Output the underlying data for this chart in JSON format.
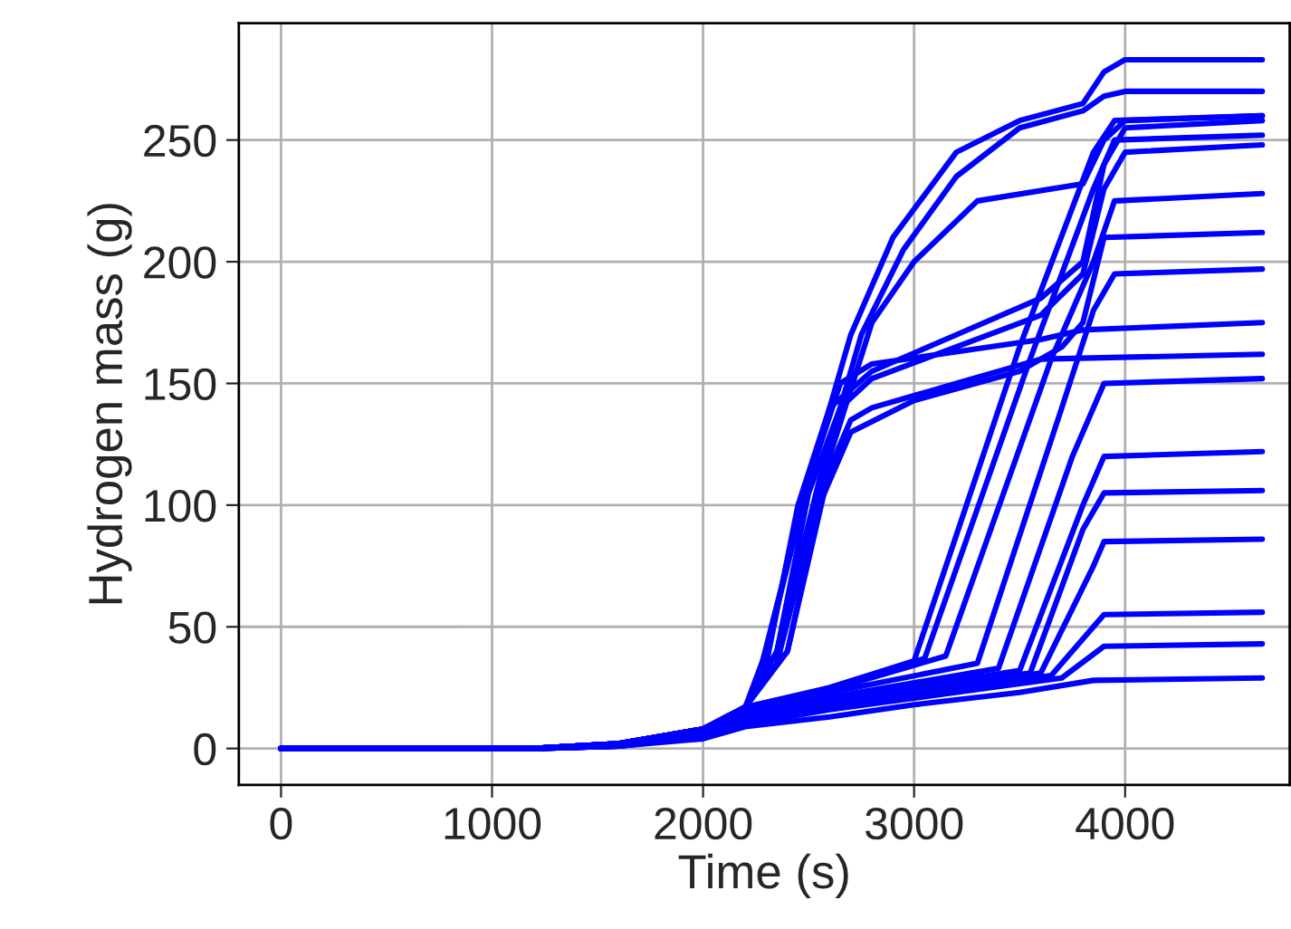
{
  "chart_data": {
    "type": "line",
    "xlabel": "Time (s)",
    "ylabel": "Hydrogen mass (g)",
    "xlim": [
      -200,
      4780
    ],
    "ylim": [
      -15,
      298
    ],
    "xticks": [
      0,
      1000,
      2000,
      3000,
      4000
    ],
    "yticks": [
      0,
      50,
      100,
      150,
      200,
      250
    ],
    "grid": true,
    "line_style": "solid",
    "marker": "none",
    "series": [
      {
        "color": "#0000ff",
        "x": [
          0,
          1200,
          1600,
          2000,
          2200,
          2300,
          2500,
          2700,
          2900,
          3200,
          3500,
          3800,
          3900,
          4000,
          4650
        ],
        "values": [
          0,
          0,
          2,
          8,
          17,
          40,
          110,
          170,
          210,
          245,
          258,
          265,
          278,
          283,
          283
        ]
      },
      {
        "color": "#0000ff",
        "x": [
          0,
          1200,
          1600,
          2000,
          2200,
          2350,
          2550,
          2750,
          2950,
          3200,
          3500,
          3800,
          3900,
          4000,
          4650
        ],
        "values": [
          0,
          0,
          2,
          8,
          17,
          40,
          110,
          170,
          205,
          235,
          255,
          262,
          268,
          270,
          270
        ]
      },
      {
        "color": "#0000ff",
        "x": [
          0,
          1200,
          1600,
          2000,
          2200,
          2350,
          2600,
          2800,
          3000,
          3300,
          3800,
          3900,
          4000,
          4650
        ],
        "values": [
          0,
          0,
          2,
          8,
          17,
          35,
          120,
          175,
          200,
          225,
          232,
          250,
          258,
          260
        ]
      },
      {
        "color": "#0000ff",
        "x": [
          0,
          1200,
          1600,
          2000,
          2200,
          2300,
          2450,
          2600,
          2800,
          3200,
          3600,
          3800,
          3900,
          4000,
          4650
        ],
        "values": [
          0,
          0,
          2,
          8,
          17,
          35,
          100,
          140,
          155,
          170,
          185,
          200,
          240,
          255,
          258
        ]
      },
      {
        "color": "#0000ff",
        "x": [
          0,
          1200,
          1600,
          2000,
          2200,
          2350,
          2500,
          2650,
          2800,
          3200,
          3600,
          3800,
          3900,
          4000,
          4650
        ],
        "values": [
          0,
          0,
          2,
          8,
          17,
          40,
          105,
          140,
          152,
          165,
          178,
          195,
          230,
          245,
          248
        ]
      },
      {
        "color": "#0000ff",
        "x": [
          0,
          1200,
          1600,
          2000,
          2200,
          2400,
          2550,
          2700,
          3000,
          3500,
          3700,
          3800,
          3900,
          4650
        ],
        "values": [
          0,
          0,
          2,
          8,
          17,
          40,
          100,
          130,
          143,
          155,
          165,
          175,
          210,
          212
        ]
      },
      {
        "color": "#0000ff",
        "x": [
          0,
          1200,
          1600,
          2000,
          2200,
          2250,
          2500,
          2650,
          2800,
          3200,
          3600,
          3800,
          4650
        ],
        "values": [
          0,
          0,
          2,
          8,
          17,
          25,
          110,
          150,
          158,
          163,
          168,
          172,
          175
        ]
      },
      {
        "color": "#0000ff",
        "x": [
          0,
          1200,
          1600,
          2000,
          2200,
          2400,
          2600,
          2700,
          2800,
          3200,
          3600,
          4650
        ],
        "values": [
          0,
          0,
          2,
          8,
          17,
          40,
          115,
          135,
          140,
          150,
          160,
          162
        ]
      },
      {
        "color": "#0000ff",
        "x": [
          0,
          1200,
          1600,
          2000,
          2200,
          2600,
          3000,
          3500,
          3850,
          3950,
          4650
        ],
        "values": [
          0,
          0,
          2,
          8,
          17,
          25,
          36,
          165,
          245,
          258,
          260
        ]
      },
      {
        "color": "#0000ff",
        "x": [
          0,
          1200,
          1600,
          2000,
          2200,
          2600,
          3050,
          3550,
          3850,
          3950,
          4650
        ],
        "values": [
          0,
          0,
          2,
          8,
          16,
          25,
          37,
          160,
          230,
          250,
          252
        ]
      },
      {
        "color": "#0000ff",
        "x": [
          0,
          1200,
          1600,
          2000,
          2200,
          2600,
          3150,
          3650,
          3850,
          3950,
          4650
        ],
        "values": [
          0,
          0,
          2,
          7,
          15,
          24,
          38,
          160,
          200,
          225,
          228
        ]
      },
      {
        "color": "#0000ff",
        "x": [
          0,
          1200,
          1600,
          2000,
          2200,
          2600,
          3300,
          3700,
          3850,
          3950,
          4650
        ],
        "values": [
          0,
          0,
          2,
          7,
          14,
          23,
          35,
          140,
          180,
          195,
          197
        ]
      },
      {
        "color": "#0000ff",
        "x": [
          0,
          1200,
          1600,
          2000,
          2200,
          2600,
          3400,
          3750,
          3900,
          4650
        ],
        "values": [
          0,
          0,
          2,
          6,
          13,
          21,
          33,
          120,
          150,
          152
        ]
      },
      {
        "color": "#0000ff",
        "x": [
          0,
          1200,
          1600,
          2000,
          2200,
          2600,
          3500,
          3800,
          3900,
          4650
        ],
        "values": [
          0,
          0,
          1,
          6,
          12,
          20,
          32,
          100,
          120,
          122
        ]
      },
      {
        "color": "#0000ff",
        "x": [
          0,
          1200,
          1600,
          2000,
          2200,
          2600,
          3550,
          3800,
          3900,
          4650
        ],
        "values": [
          0,
          0,
          1,
          6,
          12,
          19,
          31,
          90,
          105,
          106
        ]
      },
      {
        "color": "#0000ff",
        "x": [
          0,
          1200,
          1600,
          2000,
          2200,
          2600,
          3600,
          3850,
          3900,
          4650
        ],
        "values": [
          0,
          0,
          1,
          5,
          11,
          18,
          31,
          75,
          85,
          86
        ]
      },
      {
        "color": "#0000ff",
        "x": [
          0,
          1200,
          1600,
          2000,
          2200,
          2600,
          3650,
          3900,
          4650
        ],
        "values": [
          0,
          0,
          1,
          5,
          11,
          17,
          30,
          55,
          56
        ]
      },
      {
        "color": "#0000ff",
        "x": [
          0,
          1200,
          1600,
          2000,
          2200,
          2600,
          3700,
          3900,
          4650
        ],
        "values": [
          0,
          0,
          1,
          5,
          10,
          16,
          29,
          42,
          43
        ]
      },
      {
        "color": "#0000ff",
        "x": [
          0,
          1200,
          1600,
          2000,
          2200,
          2600,
          3000,
          3500,
          3850,
          4650
        ],
        "values": [
          0,
          0,
          1,
          4,
          9,
          13,
          18,
          23,
          28,
          29
        ]
      }
    ]
  }
}
